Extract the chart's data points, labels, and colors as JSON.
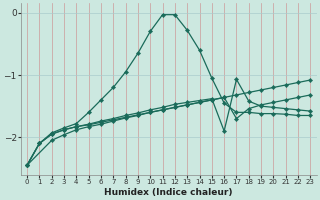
{
  "xlabel": "Humidex (Indice chaleur)",
  "bg_color": "#cce8e0",
  "grid_color": "#aacccc",
  "line_color": "#1a6b5a",
  "xlim": [
    -0.5,
    23.5
  ],
  "ylim": [
    -2.6,
    0.15
  ],
  "yticks": [
    0,
    -1,
    -2
  ],
  "xticks": [
    0,
    1,
    2,
    3,
    4,
    5,
    6,
    7,
    8,
    9,
    10,
    11,
    12,
    13,
    14,
    15,
    16,
    17,
    18,
    19,
    20,
    21,
    22,
    23
  ],
  "series": {
    "curve": {
      "x": [
        0,
        1,
        2,
        3,
        4,
        5,
        6,
        7,
        8,
        9,
        10,
        11,
        12,
        13,
        14,
        15,
        16,
        17,
        18,
        19,
        20,
        21,
        22,
        23
      ],
      "y": [
        -2.45,
        -2.1,
        -1.93,
        -1.85,
        -1.78,
        -1.6,
        -1.4,
        -1.2,
        -0.95,
        -0.65,
        -0.3,
        -0.03,
        -0.03,
        -0.28,
        -0.6,
        -1.05,
        -1.45,
        -1.6,
        -1.6,
        -1.62,
        -1.62,
        -1.63,
        -1.65,
        -1.65
      ]
    },
    "line1": {
      "x": [
        0,
        1,
        2,
        3,
        4,
        5,
        6,
        7,
        8,
        9,
        10,
        11,
        12,
        13,
        14,
        15,
        16,
        17,
        18,
        19,
        20,
        21,
        22,
        23
      ],
      "y": [
        -2.45,
        -2.1,
        -1.95,
        -1.88,
        -1.83,
        -1.8,
        -1.76,
        -1.72,
        -1.68,
        -1.64,
        -1.6,
        -1.56,
        -1.52,
        -1.48,
        -1.44,
        -1.4,
        -1.36,
        -1.32,
        -1.28,
        -1.24,
        -1.2,
        -1.16,
        -1.12,
        -1.08
      ]
    },
    "line2": {
      "x": [
        0,
        1,
        2,
        3,
        4,
        5,
        6,
        7,
        8,
        9,
        10,
        11,
        12,
        13,
        14,
        15,
        16,
        17,
        18,
        19,
        20,
        21,
        22,
        23
      ],
      "y": [
        -2.45,
        -2.1,
        -1.95,
        -1.88,
        -1.83,
        -1.79,
        -1.74,
        -1.7,
        -1.65,
        -1.61,
        -1.56,
        -1.52,
        -1.47,
        -1.44,
        -1.41,
        -1.38,
        -1.9,
        -1.07,
        -1.42,
        -1.5,
        -1.52,
        -1.54,
        -1.56,
        -1.58
      ]
    },
    "line3": {
      "x": [
        0,
        2,
        3,
        4,
        5,
        6,
        7,
        8,
        9,
        10,
        11,
        12,
        13,
        14,
        15,
        16,
        17,
        18,
        19,
        20,
        21,
        22,
        23
      ],
      "y": [
        -2.45,
        -2.05,
        -1.96,
        -1.88,
        -1.83,
        -1.79,
        -1.74,
        -1.69,
        -1.65,
        -1.6,
        -1.56,
        -1.52,
        -1.48,
        -1.44,
        -1.4,
        -1.36,
        -1.7,
        -1.54,
        -1.48,
        -1.44,
        -1.4,
        -1.36,
        -1.32
      ]
    }
  }
}
